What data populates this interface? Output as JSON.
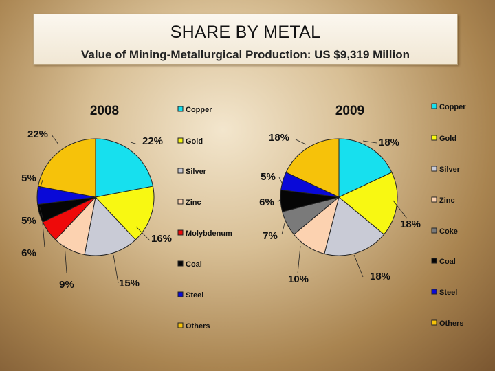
{
  "header": {
    "title": "SHARE BY METAL",
    "subtitle": "Value of Mining-Metallurgical Production: US $9,319 Million"
  },
  "chart_data": [
    {
      "type": "pie",
      "title": "2008",
      "labels": [
        "Copper",
        "Gold",
        "Silver",
        "Zinc",
        "Molybdenum",
        "Coal",
        "Steel",
        "Others"
      ],
      "values": [
        22,
        16,
        15,
        9,
        6,
        5,
        5,
        22
      ],
      "percent_labels": [
        "22%",
        "16%",
        "15%",
        "9%",
        "6%",
        "5%",
        "5%",
        "22%"
      ],
      "colors": [
        "#17e0ee",
        "#f8f812",
        "#c9cbd6",
        "#fcd2b0",
        "#ee0a0a",
        "#050505",
        "#0909d8",
        "#f6c20a"
      ],
      "legend": "right"
    },
    {
      "type": "pie",
      "title": "2009",
      "labels": [
        "Copper",
        "Gold",
        "Silver",
        "Zinc",
        "Coke",
        "Coal",
        "Steel",
        "Others"
      ],
      "values": [
        18,
        18,
        18,
        10,
        7,
        6,
        5,
        18
      ],
      "percent_labels": [
        "18%",
        "18%",
        "18%",
        "10%",
        "7%",
        "6%",
        "5%",
        "18%"
      ],
      "colors": [
        "#17e0ee",
        "#f8f812",
        "#c9cbd6",
        "#fcd2b0",
        "#7a7a7a",
        "#050505",
        "#0909d8",
        "#f6c20a"
      ],
      "legend": "right"
    }
  ]
}
